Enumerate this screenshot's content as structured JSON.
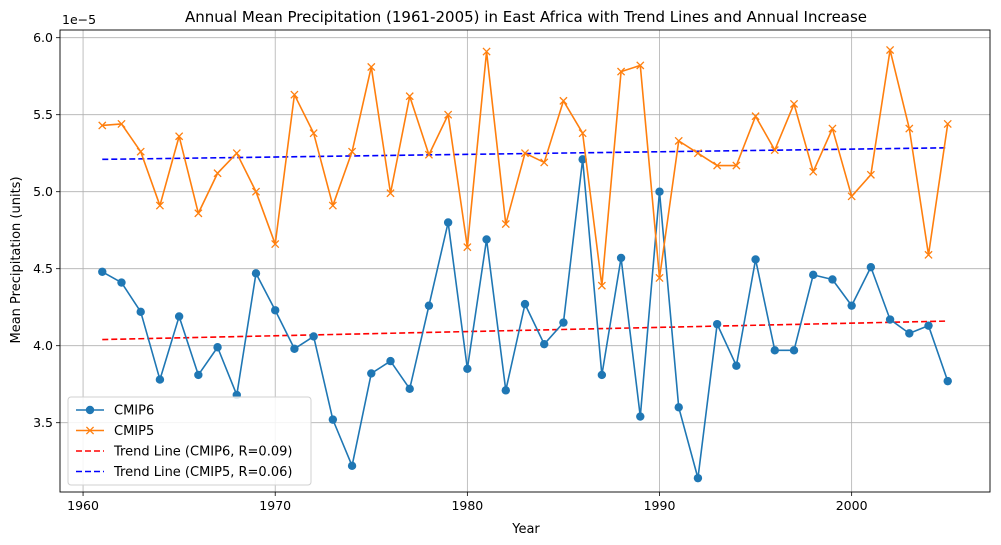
{
  "chart_data": {
    "type": "line",
    "title": "Annual Mean Precipitation (1961-2005) in East Africa with Trend Lines and Annual Increase",
    "xlabel": "Year",
    "ylabel": "Mean Precipitation (units)",
    "y_offset_label": "1e−5",
    "xlim": [
      1958.8,
      2007.2
    ],
    "ylim": [
      3.05,
      6.05
    ],
    "y_scale_note": "values ×1e-5",
    "xticks": [
      1960,
      1970,
      1980,
      1990,
      2000
    ],
    "yticks": [
      3.5,
      4.0,
      4.5,
      5.0,
      5.5,
      6.0
    ],
    "ytick_labels": [
      "3.5",
      "4.0",
      "4.5",
      "5.0",
      "5.5",
      "6.0"
    ],
    "grid": true,
    "legend_position": "lower-left",
    "x": [
      1961,
      1962,
      1963,
      1964,
      1965,
      1966,
      1967,
      1968,
      1969,
      1970,
      1971,
      1972,
      1973,
      1974,
      1975,
      1976,
      1977,
      1978,
      1979,
      1980,
      1981,
      1982,
      1983,
      1984,
      1985,
      1986,
      1987,
      1988,
      1989,
      1990,
      1991,
      1992,
      1993,
      1994,
      1995,
      1996,
      1997,
      1998,
      1999,
      2000,
      2001,
      2002,
      2003,
      2004,
      2005
    ],
    "series": [
      {
        "name": "CMIP6",
        "color": "#1f77b4",
        "marker": "circle",
        "values": [
          4.48,
          4.41,
          4.22,
          3.78,
          4.19,
          3.81,
          3.99,
          3.68,
          4.47,
          4.23,
          3.98,
          4.06,
          3.52,
          3.22,
          3.82,
          3.9,
          3.72,
          4.26,
          4.8,
          3.85,
          4.69,
          3.71,
          4.27,
          4.01,
          4.15,
          5.21,
          3.81,
          4.57,
          3.54,
          5.0,
          3.6,
          3.14,
          4.14,
          3.87,
          4.56,
          3.97,
          3.97,
          4.46,
          4.43,
          4.26,
          4.51,
          4.17,
          4.08,
          4.13,
          3.77
        ]
      },
      {
        "name": "CMIP5",
        "color": "#ff7f0e",
        "marker": "x",
        "values": [
          5.43,
          5.44,
          5.26,
          4.91,
          5.36,
          4.86,
          5.12,
          5.25,
          5.0,
          4.66,
          5.63,
          5.38,
          4.91,
          5.26,
          5.81,
          4.99,
          5.62,
          5.24,
          5.5,
          4.64,
          5.91,
          4.79,
          5.25,
          5.19,
          5.59,
          5.38,
          4.39,
          5.78,
          5.82,
          4.44,
          5.33,
          5.25,
          5.17,
          5.17,
          5.49,
          5.27,
          5.57,
          5.13,
          5.41,
          4.97,
          5.11,
          5.92,
          5.41,
          4.59,
          5.44
        ]
      }
    ],
    "trend_lines": [
      {
        "name": "Trend Line (CMIP6, R=0.09)",
        "color": "#ff0000",
        "start": [
          1961,
          4.04
        ],
        "end": [
          2005,
          4.16
        ]
      },
      {
        "name": "Trend Line (CMIP5, R=0.06)",
        "color": "#0000ff",
        "start": [
          1961,
          5.21
        ],
        "end": [
          2005,
          5.285
        ]
      }
    ]
  }
}
